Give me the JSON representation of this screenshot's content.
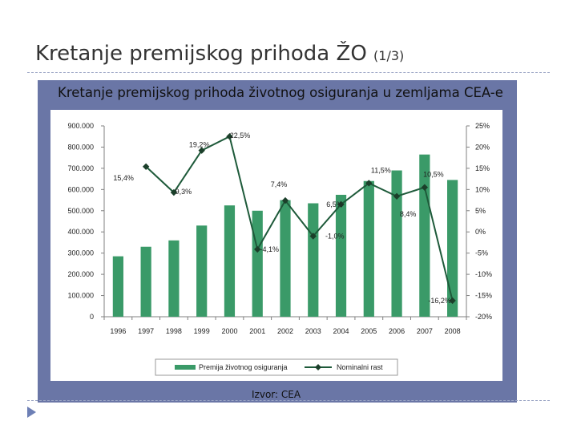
{
  "slide": {
    "title": "Kretanje premijskog prihoda ŽO",
    "title_suffix": "(1/3)"
  },
  "chart_data": {
    "type": "bar",
    "title": "Kretanje premijskog prihoda životnog osiguranja u zemljama CEA-e",
    "source": "Izvor: CEA",
    "categories": [
      "1996",
      "1997",
      "1998",
      "1999",
      "2000",
      "2001",
      "2002",
      "2003",
      "2004",
      "2005",
      "2006",
      "2007",
      "2008"
    ],
    "series": [
      {
        "name": "Premija životnog osiguranja",
        "type": "bar",
        "axis": "left",
        "color": "#3a9a68",
        "values": [
          285000,
          330000,
          360000,
          430000,
          525000,
          500000,
          550000,
          535000,
          575000,
          640000,
          690000,
          765000,
          645000
        ]
      },
      {
        "name": "Nominalni rast",
        "type": "line",
        "axis": "right",
        "color": "#1e5a3a",
        "values": [
          null,
          15.4,
          9.3,
          19.2,
          22.5,
          -4.1,
          7.4,
          -1.0,
          6.5,
          11.5,
          8.4,
          10.5,
          -16.2
        ],
        "labels": [
          "",
          "15,4%",
          "9,3%",
          "19,2%",
          "22,5%",
          "-4,1%",
          "7,4%",
          "-1,0%",
          "6,5%",
          "11,5%",
          "8,4%",
          "10,5%",
          "-16,2%"
        ]
      }
    ],
    "y_left": {
      "min": 0,
      "max": 900000,
      "step": 100000,
      "ticks": [
        "0",
        "100.000",
        "200.000",
        "300.000",
        "400.000",
        "500.000",
        "600.000",
        "700.000",
        "800.000",
        "900.000"
      ]
    },
    "y_right": {
      "min": -20,
      "max": 25,
      "step": 5,
      "ticks": [
        "-20%",
        "-15%",
        "-10%",
        "-5%",
        "0%",
        "5%",
        "10%",
        "15%",
        "20%",
        "25%"
      ]
    },
    "legend": {
      "position": "bottom",
      "items": [
        "Premija životnog osiguranja",
        "Nominalni rast"
      ]
    },
    "grid": false
  }
}
